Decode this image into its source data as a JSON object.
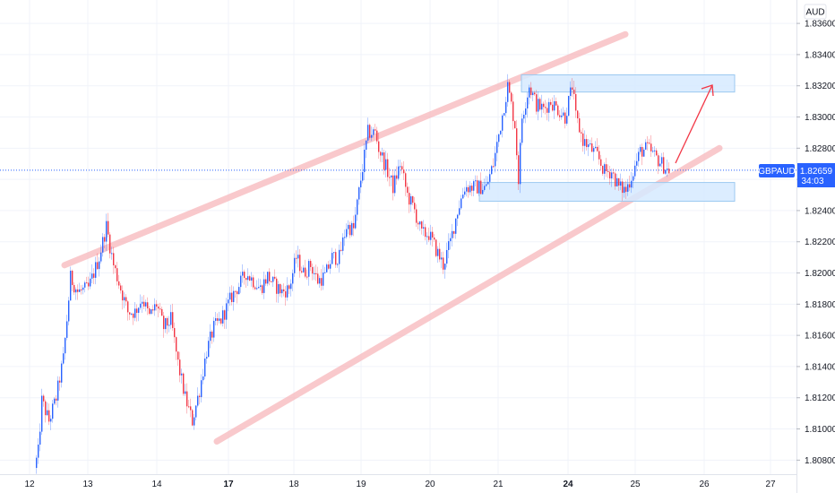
{
  "chart_data": {
    "type": "candlestick",
    "symbol": "GBPAUD",
    "currency": "AUD",
    "last_price": "1.82659",
    "countdown": "34:03",
    "y_range": [
      1.8071,
      1.8375
    ],
    "y_ticks": [
      "1.83600",
      "1.83400",
      "1.83200",
      "1.83000",
      "1.82800",
      "1.82600",
      "1.82400",
      "1.82200",
      "1.82000",
      "1.81800",
      "1.81600",
      "1.81400",
      "1.81200",
      "1.81000",
      "1.80800"
    ],
    "x_ticks": [
      {
        "label": "12",
        "bold": false
      },
      {
        "label": "13",
        "bold": false
      },
      {
        "label": "14",
        "bold": false
      },
      {
        "label": "17",
        "bold": true
      },
      {
        "label": "18",
        "bold": false
      },
      {
        "label": "19",
        "bold": false
      },
      {
        "label": "20",
        "bold": false
      },
      {
        "label": "21",
        "bold": false
      },
      {
        "label": "24",
        "bold": true
      },
      {
        "label": "25",
        "bold": false
      },
      {
        "label": "26",
        "bold": false
      },
      {
        "label": "27",
        "bold": false
      }
    ],
    "anchors": [
      [
        0,
        1.8075
      ],
      [
        2,
        1.8085
      ],
      [
        4,
        1.8118
      ],
      [
        8,
        1.8105
      ],
      [
        12,
        1.812
      ],
      [
        16,
        1.8145
      ],
      [
        18,
        1.817
      ],
      [
        20,
        1.8197
      ],
      [
        24,
        1.8188
      ],
      [
        30,
        1.819
      ],
      [
        36,
        1.821
      ],
      [
        40,
        1.823
      ],
      [
        44,
        1.8205
      ],
      [
        48,
        1.819
      ],
      [
        52,
        1.8175
      ],
      [
        56,
        1.8175
      ],
      [
        60,
        1.8184
      ],
      [
        64,
        1.8172
      ],
      [
        68,
        1.818
      ],
      [
        72,
        1.8165
      ],
      [
        76,
        1.817
      ],
      [
        80,
        1.8142
      ],
      [
        84,
        1.812
      ],
      [
        88,
        1.8105
      ],
      [
        92,
        1.8125
      ],
      [
        96,
        1.815
      ],
      [
        100,
        1.8165
      ],
      [
        104,
        1.817
      ],
      [
        110,
        1.8185
      ],
      [
        114,
        1.8192
      ],
      [
        118,
        1.82
      ],
      [
        122,
        1.8195
      ],
      [
        126,
        1.819
      ],
      [
        130,
        1.8198
      ],
      [
        134,
        1.8192
      ],
      [
        138,
        1.8188
      ],
      [
        142,
        1.819
      ],
      [
        146,
        1.821
      ],
      [
        150,
        1.82
      ],
      [
        154,
        1.8205
      ],
      [
        158,
        1.8195
      ],
      [
        162,
        1.8198
      ],
      [
        166,
        1.821
      ],
      [
        170,
        1.821
      ],
      [
        174,
        1.823
      ],
      [
        178,
        1.8228
      ],
      [
        182,
        1.826
      ],
      [
        186,
        1.829
      ],
      [
        190,
        1.829
      ],
      [
        192,
        1.828
      ],
      [
        196,
        1.8268
      ],
      [
        200,
        1.8255
      ],
      [
        204,
        1.827
      ],
      [
        208,
        1.825
      ],
      [
        212,
        1.824
      ],
      [
        216,
        1.8225
      ],
      [
        220,
        1.8225
      ],
      [
        224,
        1.8215
      ],
      [
        228,
        1.8205
      ],
      [
        232,
        1.822
      ],
      [
        236,
        1.824
      ],
      [
        240,
        1.8255
      ],
      [
        244,
        1.8255
      ],
      [
        248,
        1.8255
      ],
      [
        252,
        1.8255
      ],
      [
        256,
        1.827
      ],
      [
        260,
        1.8295
      ],
      [
        264,
        1.832
      ],
      [
        268,
        1.8295
      ],
      [
        270,
        1.826
      ],
      [
        272,
        1.83
      ],
      [
        276,
        1.832
      ],
      [
        280,
        1.8308
      ],
      [
        284,
        1.8305
      ],
      [
        288,
        1.831
      ],
      [
        292,
        1.8305
      ],
      [
        296,
        1.83
      ],
      [
        300,
        1.832
      ],
      [
        302,
        1.83
      ],
      [
        306,
        1.8285
      ],
      [
        310,
        1.828
      ],
      [
        314,
        1.8275
      ],
      [
        318,
        1.8265
      ],
      [
        322,
        1.8265
      ],
      [
        326,
        1.8255
      ],
      [
        330,
        1.8253
      ],
      [
        334,
        1.8265
      ],
      [
        338,
        1.8278
      ],
      [
        342,
        1.828
      ],
      [
        346,
        1.8275
      ],
      [
        350,
        1.827
      ],
      [
        353,
        1.8266
      ]
    ],
    "channel_upper": [
      [
        72,
        1.8205
      ],
      [
        698,
        1.8353
      ]
    ],
    "channel_lower": [
      [
        242,
        1.8092
      ],
      [
        803,
        1.828
      ]
    ],
    "resistance_zone": [
      1.8327,
      1.8316
    ],
    "support_zone": [
      1.8258,
      1.8246
    ],
    "colors": {
      "up": "#2962ff",
      "down": "#f23645",
      "channel": "#f7b7bb",
      "zone_fill": "#d6eaff",
      "zone_border": "#9cc9f0",
      "arrow": "#f23645",
      "price_line": "#2962ff",
      "grid": "#f0f3fa"
    }
  }
}
